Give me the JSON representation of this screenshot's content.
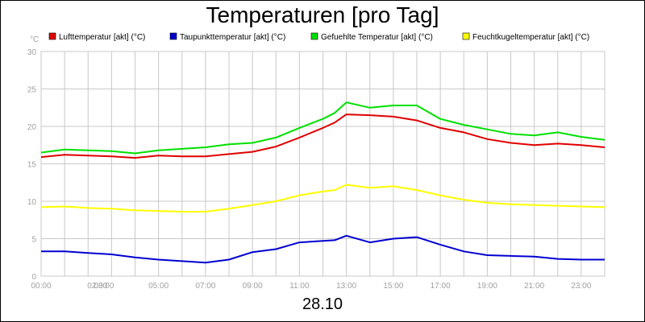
{
  "chart_data": {
    "type": "line",
    "title": "Temperaturen [pro Tag]",
    "ylabel": "°C",
    "date_label": "28.10",
    "ylim": [
      0,
      30
    ],
    "xlim": [
      "00:00",
      "24:00"
    ],
    "yticks": [
      0,
      5,
      10,
      15,
      20,
      25,
      30
    ],
    "xticks": [
      "00:00",
      "02:00",
      "03:00",
      "05:00",
      "07:00",
      "09:00",
      "11:00",
      "13:00",
      "15:00",
      "17:00",
      "19:00",
      "21:00",
      "23:00"
    ],
    "grid": true,
    "legend_position": "top",
    "series": [
      {
        "name": "Lufttemperatur [akt] (°C)",
        "color": "#e00000",
        "x": [
          "00:00",
          "01:00",
          "02:00",
          "03:00",
          "04:00",
          "05:00",
          "06:00",
          "07:00",
          "08:00",
          "09:00",
          "10:00",
          "11:00",
          "12:00",
          "12:30",
          "13:00",
          "14:00",
          "15:00",
          "16:00",
          "17:00",
          "18:00",
          "19:00",
          "20:00",
          "21:00",
          "22:00",
          "23:00",
          "24:00"
        ],
        "y": [
          15.9,
          16.2,
          16.1,
          16.0,
          15.8,
          16.1,
          16.0,
          16.0,
          16.3,
          16.6,
          17.3,
          18.5,
          19.8,
          20.5,
          21.6,
          21.5,
          21.3,
          20.8,
          19.8,
          19.2,
          18.3,
          17.8,
          17.5,
          17.7,
          17.5,
          17.2
        ]
      },
      {
        "name": "Taupunkttemperatur [akt] (°C)",
        "color": "#0000d0",
        "x": [
          "00:00",
          "01:00",
          "02:00",
          "03:00",
          "04:00",
          "05:00",
          "06:00",
          "07:00",
          "08:00",
          "09:00",
          "10:00",
          "11:00",
          "12:00",
          "12:30",
          "13:00",
          "14:00",
          "15:00",
          "16:00",
          "17:00",
          "18:00",
          "19:00",
          "20:00",
          "21:00",
          "22:00",
          "23:00",
          "24:00"
        ],
        "y": [
          3.3,
          3.3,
          3.1,
          2.9,
          2.5,
          2.2,
          2.0,
          1.8,
          2.2,
          3.2,
          3.6,
          4.5,
          4.7,
          4.8,
          5.4,
          4.5,
          5.0,
          5.2,
          4.2,
          3.3,
          2.8,
          2.7,
          2.6,
          2.3,
          2.2,
          2.2
        ]
      },
      {
        "name": "Gefuehlte Temperatur [akt] (°C)",
        "color": "#00e000",
        "x": [
          "00:00",
          "01:00",
          "02:00",
          "03:00",
          "04:00",
          "05:00",
          "06:00",
          "07:00",
          "08:00",
          "09:00",
          "10:00",
          "11:00",
          "12:00",
          "12:30",
          "13:00",
          "14:00",
          "15:00",
          "16:00",
          "17:00",
          "18:00",
          "19:00",
          "20:00",
          "21:00",
          "22:00",
          "23:00",
          "24:00"
        ],
        "y": [
          16.5,
          16.9,
          16.8,
          16.7,
          16.4,
          16.8,
          17.0,
          17.2,
          17.6,
          17.8,
          18.5,
          19.8,
          21.0,
          21.8,
          23.2,
          22.5,
          22.8,
          22.8,
          21.0,
          20.2,
          19.6,
          19.0,
          18.8,
          19.2,
          18.6,
          18.2
        ]
      },
      {
        "name": "Feuchtkugeltemperatur [akt] (°C)",
        "color": "#ffff00",
        "x": [
          "00:00",
          "01:00",
          "02:00",
          "03:00",
          "04:00",
          "05:00",
          "06:00",
          "07:00",
          "08:00",
          "09:00",
          "10:00",
          "11:00",
          "12:00",
          "12:30",
          "13:00",
          "14:00",
          "15:00",
          "16:00",
          "17:00",
          "18:00",
          "19:00",
          "20:00",
          "21:00",
          "22:00",
          "23:00",
          "24:00"
        ],
        "y": [
          9.2,
          9.3,
          9.1,
          9.0,
          8.8,
          8.7,
          8.6,
          8.6,
          9.0,
          9.5,
          10.0,
          10.8,
          11.3,
          11.5,
          12.2,
          11.8,
          12.0,
          11.5,
          10.8,
          10.2,
          9.8,
          9.6,
          9.5,
          9.4,
          9.3,
          9.2
        ]
      }
    ]
  }
}
